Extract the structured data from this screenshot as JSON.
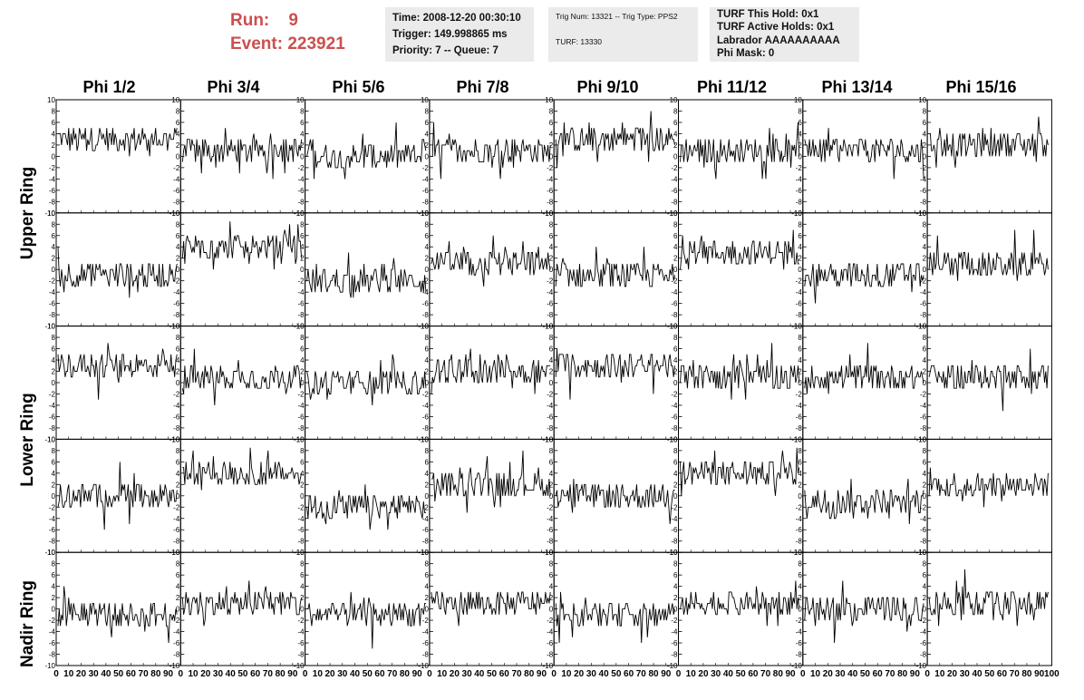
{
  "header": {
    "run_label": "Run:",
    "run_value": "9",
    "event_label": "Event:",
    "event_value": "223921",
    "time": "Time: 2008-12-20 00:30:10",
    "trigger": "Trigger: 149.998865 ms",
    "priority_queue": "Priority: 7 -- Queue: 7",
    "trig_num_type": "Trig Num: 13321 -- Trig Type: PPS2",
    "turf": "TURF: 13330",
    "turf_this_hold": "TURF This Hold: 0x1",
    "turf_active_holds": "TURF Active Holds: 0x1",
    "labrador": "Labrador AAAAAAAAAA",
    "phi_mask": "Phi Mask: 0"
  },
  "columns": [
    "Phi 1/2",
    "Phi 3/4",
    "Phi 5/6",
    "Phi 7/8",
    "Phi 9/10",
    "Phi 11/12",
    "Phi 13/14",
    "Phi 15/16"
  ],
  "rows": [
    "Upper Ring",
    "Lower Ring",
    "Nadir Ring"
  ],
  "colors": {
    "title_red": "#cc4f4f",
    "info_bg": "#ebebeb",
    "trace": "#000000"
  },
  "chart_data": {
    "type": "line",
    "layout": "grid of 5 rows x 8 columns of waveform panels",
    "xlim": [
      0,
      100
    ],
    "ylim": [
      -10,
      10
    ],
    "y_ticks": [
      -10,
      -8,
      -6,
      -4,
      -2,
      0,
      2,
      4,
      6,
      8,
      10
    ],
    "x_ticks": [
      0,
      10,
      20,
      30,
      40,
      50,
      60,
      70,
      80,
      90,
      100
    ],
    "x_tick_labels_bottom": "0 10 20 30 40 50 60 70 80 90 0 10 20 30 40 50 60 70 80 90 0 10 20 30 40 50 60 70 80 90 0 10 20 30 40 50 60 70 80 90 0 10 20 30 40 50 60 70 80 90 0 10 20 30 40 50 60 70 80 90 0 10 20 30 40 50 60 70 80 90 0 10 20 30 40 50 60 70 80 90 100",
    "panel_baselines": [
      [
        3,
        1,
        0,
        1,
        3,
        1,
        1,
        2
      ],
      [
        -1,
        4,
        -2,
        1,
        -1,
        3,
        -1,
        1
      ],
      [
        3,
        1,
        0,
        2,
        3,
        1,
        1,
        1
      ],
      [
        0,
        4,
        -2,
        2,
        0,
        4,
        -1,
        2
      ],
      [
        -1,
        1,
        -1,
        1,
        -1,
        1,
        0,
        1
      ]
    ],
    "note_values": "each panel is a noisy waveform around its baseline spanning roughly -8 to +8"
  }
}
